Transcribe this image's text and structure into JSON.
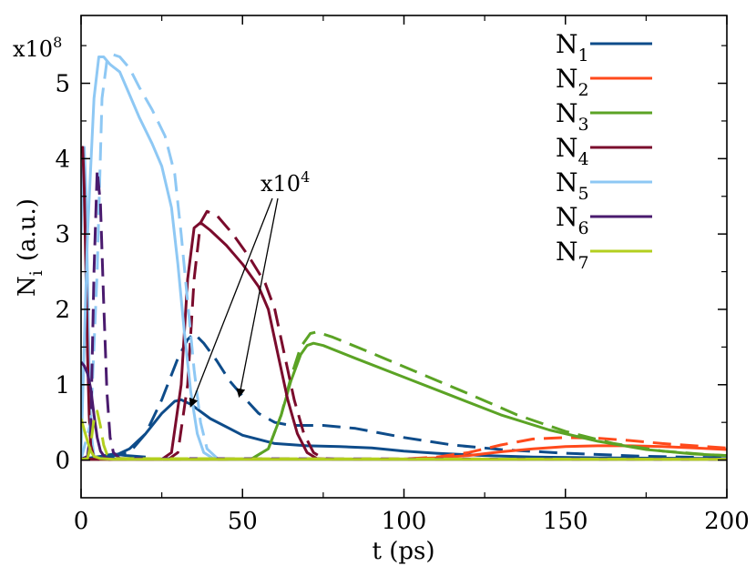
{
  "chart_data": {
    "type": "line",
    "xlabel": "t (ps)",
    "ylabel": "N",
    "ylabel_sub": "i",
    "ylabel_unit": "(a.u.)",
    "xlim": [
      0,
      200
    ],
    "ylim": [
      -0.5,
      5.9
    ],
    "xticks": [
      0,
      50,
      100,
      150,
      200
    ],
    "xtick_labels": [
      "0",
      "50",
      "100",
      "150",
      "200"
    ],
    "yticks": [
      0,
      1,
      2,
      3,
      4,
      5
    ],
    "ytick_labels": [
      "0",
      "1",
      "2",
      "3",
      "4",
      "5"
    ],
    "y_multiplier": {
      "base": "x10",
      "exp": "8"
    },
    "annotation": {
      "base": "x10",
      "exp": "4",
      "targets": [
        [
          34,
          0.72
        ],
        [
          49,
          0.85
        ]
      ]
    },
    "legend_position": "top-right",
    "series": [
      {
        "name": "N",
        "sub": "1",
        "color": "#0e4c8a",
        "solid": [
          [
            0,
            0.01
          ],
          [
            10,
            0.05
          ],
          [
            15,
            0.15
          ],
          [
            20,
            0.35
          ],
          [
            25,
            0.62
          ],
          [
            29,
            0.78
          ],
          [
            31,
            0.8
          ],
          [
            34,
            0.74
          ],
          [
            40,
            0.55
          ],
          [
            50,
            0.33
          ],
          [
            60,
            0.22
          ],
          [
            70,
            0.19
          ],
          [
            80,
            0.18
          ],
          [
            90,
            0.16
          ],
          [
            100,
            0.12
          ],
          [
            110,
            0.09
          ],
          [
            125,
            0.06
          ],
          [
            140,
            0.04
          ],
          [
            160,
            0.03
          ],
          [
            200,
            0.02
          ]
        ],
        "dashed": [
          [
            0,
            0.01
          ],
          [
            15,
            0.1
          ],
          [
            20,
            0.35
          ],
          [
            25,
            0.8
          ],
          [
            30,
            1.35
          ],
          [
            33,
            1.6
          ],
          [
            35,
            1.68
          ],
          [
            38,
            1.55
          ],
          [
            42,
            1.32
          ],
          [
            46,
            1.05
          ],
          [
            50,
            0.85
          ],
          [
            55,
            0.62
          ],
          [
            60,
            0.5
          ],
          [
            65,
            0.46
          ],
          [
            75,
            0.46
          ],
          [
            85,
            0.42
          ],
          [
            100,
            0.3
          ],
          [
            115,
            0.2
          ],
          [
            130,
            0.14
          ],
          [
            150,
            0.09
          ],
          [
            175,
            0.05
          ],
          [
            200,
            0.03
          ]
        ]
      },
      {
        "name": "N",
        "sub": "2",
        "color": "#ff4a1c",
        "solid": [
          [
            0,
            0.01
          ],
          [
            100,
            0.015
          ],
          [
            110,
            0.03
          ],
          [
            120,
            0.06
          ],
          [
            130,
            0.11
          ],
          [
            140,
            0.15
          ],
          [
            150,
            0.18
          ],
          [
            160,
            0.19
          ],
          [
            170,
            0.19
          ],
          [
            180,
            0.18
          ],
          [
            190,
            0.16
          ],
          [
            200,
            0.14
          ]
        ],
        "dashed": [
          [
            0,
            0.01
          ],
          [
            100,
            0.015
          ],
          [
            110,
            0.04
          ],
          [
            120,
            0.1
          ],
          [
            130,
            0.2
          ],
          [
            140,
            0.28
          ],
          [
            150,
            0.3
          ],
          [
            160,
            0.29
          ],
          [
            170,
            0.26
          ],
          [
            180,
            0.22
          ],
          [
            190,
            0.19
          ],
          [
            200,
            0.16
          ]
        ]
      },
      {
        "name": "N",
        "sub": "3",
        "color": "#5ba325",
        "solid": [
          [
            0,
            0.01
          ],
          [
            48,
            0.01
          ],
          [
            53,
            0.02
          ],
          [
            58,
            0.15
          ],
          [
            62,
            0.6
          ],
          [
            65,
            1.05
          ],
          [
            68,
            1.4
          ],
          [
            70,
            1.52
          ],
          [
            72,
            1.55
          ],
          [
            75,
            1.52
          ],
          [
            85,
            1.35
          ],
          [
            100,
            1.1
          ],
          [
            115,
            0.85
          ],
          [
            130,
            0.6
          ],
          [
            145,
            0.4
          ],
          [
            160,
            0.25
          ],
          [
            175,
            0.14
          ],
          [
            190,
            0.08
          ],
          [
            200,
            0.06
          ]
        ],
        "dashed": [
          [
            0,
            0.01
          ],
          [
            48,
            0.01
          ],
          [
            53,
            0.02
          ],
          [
            58,
            0.15
          ],
          [
            62,
            0.6
          ],
          [
            65,
            1.1
          ],
          [
            68,
            1.5
          ],
          [
            71,
            1.68
          ],
          [
            73,
            1.7
          ],
          [
            78,
            1.63
          ],
          [
            90,
            1.42
          ],
          [
            105,
            1.15
          ],
          [
            120,
            0.88
          ],
          [
            135,
            0.6
          ],
          [
            150,
            0.38
          ],
          [
            165,
            0.22
          ],
          [
            180,
            0.12
          ],
          [
            195,
            0.07
          ],
          [
            200,
            0.06
          ]
        ]
      },
      {
        "name": "N",
        "sub": "4",
        "color": "#7a0b2c",
        "solid": [
          [
            0,
            0.01
          ],
          [
            25,
            0.01
          ],
          [
            28,
            0.1
          ],
          [
            31,
            1.0
          ],
          [
            33,
            2.4
          ],
          [
            35,
            3.08
          ],
          [
            37,
            3.15
          ],
          [
            40,
            3.05
          ],
          [
            45,
            2.85
          ],
          [
            50,
            2.6
          ],
          [
            55,
            2.3
          ],
          [
            58,
            2.0
          ],
          [
            61,
            1.4
          ],
          [
            64,
            0.8
          ],
          [
            67,
            0.35
          ],
          [
            70,
            0.1
          ],
          [
            73,
            0.02
          ],
          [
            78,
            0.01
          ],
          [
            200,
            0.01
          ]
        ],
        "dashed": [
          [
            0,
            0.01
          ],
          [
            27,
            0.01
          ],
          [
            30,
            0.1
          ],
          [
            33,
            1.0
          ],
          [
            35,
            2.4
          ],
          [
            37,
            3.15
          ],
          [
            39,
            3.3
          ],
          [
            42,
            3.25
          ],
          [
            47,
            3.0
          ],
          [
            52,
            2.7
          ],
          [
            57,
            2.35
          ],
          [
            60,
            2.0
          ],
          [
            63,
            1.4
          ],
          [
            66,
            0.8
          ],
          [
            69,
            0.35
          ],
          [
            72,
            0.1
          ],
          [
            75,
            0.02
          ],
          [
            80,
            0.01
          ],
          [
            200,
            0.01
          ]
        ]
      },
      {
        "name": "N",
        "sub": "5",
        "color": "#8ec8f4",
        "solid": [
          [
            0,
            0.1
          ],
          [
            2,
            3.0
          ],
          [
            4,
            4.8
          ],
          [
            5.5,
            5.35
          ],
          [
            7,
            5.35
          ],
          [
            9,
            5.25
          ],
          [
            12,
            5.15
          ],
          [
            15,
            4.85
          ],
          [
            18,
            4.55
          ],
          [
            22,
            4.2
          ],
          [
            25,
            3.9
          ],
          [
            28,
            3.35
          ],
          [
            30,
            2.6
          ],
          [
            32,
            1.7
          ],
          [
            34,
            0.9
          ],
          [
            36,
            0.35
          ],
          [
            38,
            0.1
          ],
          [
            41,
            0.02
          ],
          [
            46,
            0.01
          ],
          [
            200,
            0.01
          ]
        ],
        "dashed": [
          [
            0,
            0.01
          ],
          [
            3,
            0.5
          ],
          [
            5,
            2.5
          ],
          [
            6.5,
            4.8
          ],
          [
            8,
            5.3
          ],
          [
            10,
            5.38
          ],
          [
            12,
            5.35
          ],
          [
            15,
            5.2
          ],
          [
            18,
            4.95
          ],
          [
            22,
            4.65
          ],
          [
            26,
            4.3
          ],
          [
            29,
            3.8
          ],
          [
            31,
            3.0
          ],
          [
            33,
            2.1
          ],
          [
            35,
            1.2
          ],
          [
            37,
            0.5
          ],
          [
            39,
            0.15
          ],
          [
            42,
            0.03
          ],
          [
            46,
            0.01
          ],
          [
            200,
            0.01
          ]
        ]
      },
      {
        "name": "N",
        "sub": "6",
        "color": "#4a1b6e",
        "solid": [
          [
            0,
            1.3
          ],
          [
            1,
            1.25
          ],
          [
            2,
            1.15
          ],
          [
            3,
            0.95
          ],
          [
            4,
            0.6
          ],
          [
            5,
            0.3
          ],
          [
            6,
            0.12
          ],
          [
            7.5,
            0.03
          ],
          [
            10,
            0.01
          ],
          [
            200,
            0.01
          ]
        ],
        "dashed": [
          [
            0,
            0.01
          ],
          [
            2,
            0.05
          ],
          [
            3,
            0.4
          ],
          [
            4,
            2.5
          ],
          [
            5,
            3.85
          ],
          [
            6,
            3.4
          ],
          [
            7,
            2.1
          ],
          [
            8,
            0.9
          ],
          [
            9,
            0.3
          ],
          [
            10,
            0.1
          ],
          [
            12,
            0.02
          ],
          [
            200,
            0.01
          ]
        ]
      },
      {
        "name": "N",
        "sub": "7",
        "color": "#b3cf1f",
        "solid": [
          [
            0,
            0.55
          ],
          [
            1,
            0.4
          ],
          [
            2,
            0.25
          ],
          [
            3,
            0.12
          ],
          [
            4,
            0.05
          ],
          [
            6,
            0.02
          ],
          [
            10,
            0.01
          ],
          [
            200,
            0.01
          ]
        ],
        "dashed": [
          [
            0,
            0.01
          ],
          [
            2,
            0.02
          ],
          [
            3,
            0.2
          ],
          [
            4,
            0.55
          ],
          [
            5,
            0.65
          ],
          [
            6,
            0.45
          ],
          [
            7,
            0.2
          ],
          [
            8,
            0.08
          ],
          [
            10,
            0.02
          ],
          [
            200,
            0.01
          ]
        ]
      }
    ],
    "aux_series": [
      {
        "color": "#8ec8f4",
        "dashed": false,
        "points": [
          [
            0,
            3.0
          ],
          [
            0.5,
            3.8
          ],
          [
            1,
            4.15
          ],
          [
            1.5,
            3.6
          ],
          [
            2,
            2.4
          ],
          [
            2.5,
            1.2
          ],
          [
            3,
            0.4
          ],
          [
            4,
            0.05
          ],
          [
            6,
            0.01
          ]
        ]
      },
      {
        "color": "#7a0b2c",
        "dashed": false,
        "points": [
          [
            0,
            4.1
          ],
          [
            0.5,
            4.15
          ],
          [
            1,
            3.6
          ],
          [
            1.5,
            2.5
          ],
          [
            2,
            1.4
          ],
          [
            2.5,
            0.6
          ],
          [
            3,
            0.2
          ],
          [
            4,
            0.03
          ],
          [
            6,
            0.01
          ]
        ]
      },
      {
        "color": "#0e4c8a",
        "dashed": false,
        "points": [
          [
            0,
            0.02
          ],
          [
            3,
            0.03
          ],
          [
            6,
            0.05
          ],
          [
            10,
            0.08
          ],
          [
            14,
            0.06
          ],
          [
            20,
            0.04
          ]
        ]
      }
    ]
  }
}
